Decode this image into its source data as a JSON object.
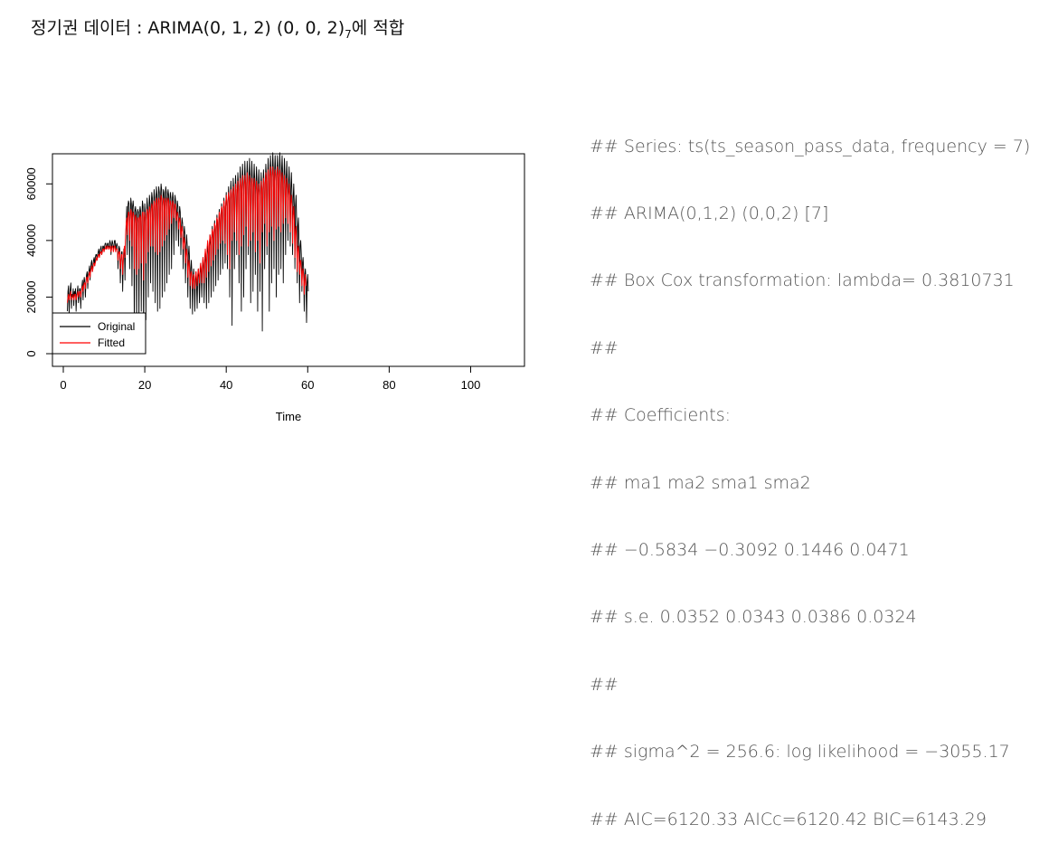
{
  "header": {
    "title_main": "정기권 데이터 : ARIMA(0, 1, 2) (0, 0, 2)",
    "title_sub": "7",
    "title_tail": "에 적합"
  },
  "console": {
    "lines": [
      "## Series: ts(ts_season_pass_data, frequency = 7)",
      "## ARIMA(0,1,2) (0,0,2) [7]",
      "## Box Cox transformation: lambda= 0.3810731",
      "##",
      "## Coefficients:",
      "## ma1 ma2 sma1 sma2",
      "## −0.5834 −0.3092 0.1446 0.0471",
      "## s.e. 0.0352 0.0343 0.0386 0.0324",
      "##",
      "## sigma^2 = 256.6: log likelihood = −3055.17",
      "## AIC=6120.33 AICc=6120.42 BIC=6143.29"
    ]
  },
  "chart_data": {
    "type": "line",
    "xlabel": "Time",
    "ylabel": "",
    "xlim": [
      0,
      105
    ],
    "ylim": [
      0,
      70000
    ],
    "x_ticks": [
      0,
      20,
      40,
      60,
      80,
      100
    ],
    "y_ticks": [
      0,
      20000,
      40000,
      60000
    ],
    "legend_position": "bottom-left",
    "grid": false,
    "x_start": 1,
    "x_step": 0.142857,
    "series": [
      {
        "name": "Original",
        "color": "#000000",
        "values": [
          15000,
          22000,
          24000,
          14000,
          21000,
          23000,
          25000,
          16000,
          21000,
          20000,
          23000,
          17000,
          22000,
          21000,
          23000,
          15000,
          21000,
          22000,
          24000,
          18000,
          20000,
          23000,
          23000,
          16000,
          22000,
          24000,
          26000,
          19000,
          25000,
          27000,
          25000,
          20000,
          26000,
          28000,
          29000,
          23000,
          28000,
          29000,
          31000,
          26000,
          30000,
          32000,
          33000,
          29000,
          31000,
          33000,
          34000,
          31000,
          34000,
          35000,
          35000,
          33000,
          35000,
          36000,
          37000,
          34000,
          36000,
          37000,
          38000,
          35000,
          36000,
          38000,
          38000,
          36000,
          38000,
          39000,
          39000,
          37000,
          38000,
          39000,
          39000,
          37000,
          38000,
          40000,
          39000,
          35000,
          38000,
          40000,
          39000,
          37000,
          38000,
          40000,
          40000,
          36000,
          38000,
          39000,
          38000,
          30000,
          36000,
          38000,
          37000,
          25000,
          33000,
          36000,
          36000,
          22000,
          32000,
          37000,
          37000,
          26000,
          40000,
          45000,
          52000,
          35000,
          52000,
          54000,
          53000,
          30000,
          48000,
          55000,
          53000,
          24000,
          52000,
          54000,
          51000,
          10000,
          50000,
          52000,
          50000,
          8000,
          49000,
          51000,
          50000,
          10000,
          50000,
          52000,
          50000,
          15000,
          48000,
          54000,
          52000,
          3000,
          47000,
          53000,
          49000,
          12000,
          49000,
          55000,
          51000,
          20000,
          50000,
          56000,
          53000,
          25000,
          52000,
          57000,
          55000,
          22000,
          51000,
          58000,
          55000,
          18000,
          52000,
          59000,
          56000,
          15000,
          54000,
          59000,
          57000,
          16000,
          55000,
          60000,
          58000,
          20000,
          53000,
          58000,
          57000,
          22000,
          54000,
          59000,
          57000,
          25000,
          55000,
          58000,
          56000,
          28000,
          54000,
          57000,
          55000,
          30000,
          53000,
          57000,
          55000,
          35000,
          52000,
          56000,
          54000,
          40000,
          50000,
          54000,
          52000,
          38000,
          48000,
          52000,
          50000,
          35000,
          45000,
          48000,
          46000,
          30000,
          42000,
          45000,
          42000,
          25000,
          38000,
          42000,
          38000,
          20000,
          35000,
          38000,
          33000,
          16000,
          30000,
          33000,
          28000,
          14000,
          27000,
          30000,
          25000,
          15000,
          26000,
          29000,
          24000,
          16000,
          27000,
          30000,
          26000,
          18000,
          28000,
          32000,
          28000,
          20000,
          30000,
          34000,
          30000,
          18000,
          32000,
          36000,
          32000,
          16000,
          35000,
          39000,
          35000,
          18000,
          38000,
          42000,
          38000,
          20000,
          40000,
          45000,
          41000,
          22000,
          42000,
          47000,
          43000,
          24000,
          44000,
          49000,
          45000,
          26000,
          46000,
          51000,
          47000,
          28000,
          48000,
          53000,
          49000,
          30000,
          50000,
          55000,
          51000,
          32000,
          52000,
          57000,
          52000,
          30000,
          53000,
          59000,
          54000,
          20000,
          55000,
          61000,
          56000,
          10000,
          56000,
          62000,
          57000,
          30000,
          57000,
          63000,
          58000,
          35000,
          58000,
          64000,
          59000,
          25000,
          58000,
          66000,
          60000,
          15000,
          59000,
          67000,
          61000,
          20000,
          60000,
          68000,
          61000,
          30000,
          60000,
          68000,
          62000,
          35000,
          61000,
          69000,
          62000,
          18000,
          61000,
          68000,
          61000,
          22000,
          60000,
          67000,
          61000,
          28000,
          60000,
          66000,
          60000,
          15000,
          58000,
          65000,
          59000,
          22000,
          57000,
          64000,
          58000,
          8000,
          58000,
          65000,
          60000,
          30000,
          60000,
          67000,
          62000,
          35000,
          62000,
          69000,
          63000,
          15000,
          63000,
          70000,
          64000,
          25000,
          64000,
          71000,
          65000,
          30000,
          64000,
          70000,
          64000,
          20000,
          63000,
          70000,
          64000,
          28000,
          64000,
          71000,
          65000,
          30000,
          64000,
          70000,
          63000,
          25000,
          62000,
          69000,
          62000,
          35000,
          61000,
          68000,
          61000,
          40000,
          60000,
          66000,
          59000,
          38000,
          58000,
          64000,
          56000,
          35000,
          55000,
          60000,
          52000,
          30000,
          52000,
          56000,
          47000,
          25000,
          45000,
          48000,
          40000,
          18000,
          38000,
          40000,
          35000,
          22000,
          32000,
          34000,
          30000,
          15000,
          28000,
          30000,
          26000,
          11000,
          25000,
          28000,
          22000
        ]
      },
      {
        "name": "Fitted",
        "color": "#ff0000",
        "values": [
          18000,
          20000,
          21000,
          19000,
          20000,
          21000,
          22000,
          19000,
          20000,
          20000,
          21000,
          19000,
          20000,
          21000,
          21000,
          19000,
          20000,
          21000,
          22000,
          20000,
          21000,
          22000,
          22000,
          20000,
          22000,
          23000,
          24000,
          22000,
          24000,
          25000,
          25000,
          23000,
          25000,
          27000,
          27000,
          25000,
          27000,
          28000,
          29000,
          27000,
          29000,
          30000,
          31000,
          29000,
          30000,
          32000,
          32000,
          31000,
          32000,
          33000,
          34000,
          33000,
          34000,
          35000,
          35000,
          34000,
          35000,
          36000,
          36000,
          35000,
          36000,
          37000,
          37000,
          36000,
          37000,
          37000,
          38000,
          37000,
          37000,
          38000,
          38000,
          37000,
          37000,
          38000,
          38000,
          36000,
          37000,
          38000,
          38000,
          36000,
          37000,
          38000,
          38000,
          36000,
          37000,
          37000,
          37000,
          33000,
          35000,
          36000,
          36000,
          30000,
          33000,
          35000,
          35000,
          28000,
          33000,
          36000,
          38000,
          34000,
          42000,
          46000,
          48000,
          42000,
          48000,
          50000,
          50000,
          40000,
          47000,
          51000,
          50000,
          38000,
          48000,
          50000,
          49000,
          30000,
          46000,
          49000,
          48000,
          28000,
          46000,
          48000,
          48000,
          30000,
          47000,
          49000,
          48000,
          32000,
          47000,
          50000,
          50000,
          26000,
          46000,
          50000,
          48000,
          32000,
          47000,
          51000,
          50000,
          36000,
          49000,
          52000,
          51000,
          38000,
          50000,
          53000,
          52000,
          38000,
          50000,
          54000,
          53000,
          36000,
          51000,
          55000,
          54000,
          35000,
          52000,
          55000,
          54000,
          36000,
          53000,
          56000,
          55000,
          38000,
          52000,
          55000,
          54000,
          40000,
          52000,
          55000,
          54000,
          42000,
          53000,
          55000,
          54000,
          44000,
          52000,
          54000,
          53000,
          46000,
          51000,
          54000,
          53000,
          48000,
          50000,
          53000,
          52000,
          47000,
          48000,
          50000,
          49000,
          44000,
          46000,
          48000,
          47000,
          41000,
          43000,
          45000,
          43000,
          37000,
          39000,
          41000,
          39000,
          32000,
          35000,
          37000,
          34000,
          27000,
          31000,
          33000,
          30000,
          24000,
          28000,
          29000,
          27000,
          23000,
          26000,
          28000,
          26000,
          23000,
          27000,
          29000,
          27000,
          24000,
          28000,
          30000,
          28000,
          25000,
          30000,
          32000,
          30000,
          25000,
          31000,
          34000,
          32000,
          25000,
          34000,
          37000,
          35000,
          27000,
          37000,
          40000,
          38000,
          29000,
          39000,
          42000,
          41000,
          31000,
          41000,
          44000,
          43000,
          33000,
          43000,
          46000,
          45000,
          35000,
          45000,
          48000,
          47000,
          37000,
          47000,
          50000,
          49000,
          39000,
          49000,
          52000,
          51000,
          40000,
          51000,
          54000,
          52000,
          39000,
          52000,
          56000,
          54000,
          35000,
          54000,
          57000,
          55000,
          30000,
          54000,
          58000,
          56000,
          40000,
          55000,
          59000,
          57000,
          43000,
          56000,
          60000,
          58000,
          40000,
          56000,
          61000,
          58000,
          35000,
          57000,
          62000,
          59000,
          38000,
          58000,
          63000,
          60000,
          42000,
          58000,
          63000,
          60000,
          45000,
          59000,
          64000,
          61000,
          38000,
          59000,
          63000,
          60000,
          40000,
          58000,
          62000,
          60000,
          43000,
          58000,
          62000,
          59000,
          36000,
          56000,
          61000,
          58000,
          40000,
          56000,
          60000,
          57000,
          32000,
          56000,
          61000,
          58000,
          43000,
          58000,
          62000,
          60000,
          46000,
          60000,
          64000,
          61000,
          38000,
          61000,
          65000,
          62000,
          43000,
          62000,
          66000,
          63000,
          45000,
          62000,
          66000,
          63000,
          40000,
          61000,
          65000,
          63000,
          44000,
          62000,
          66000,
          63000,
          45000,
          62000,
          65000,
          62000,
          43000,
          60000,
          64000,
          61000,
          46000,
          59000,
          63000,
          60000,
          48000,
          58000,
          62000,
          58000,
          46000,
          56000,
          60000,
          56000,
          43000,
          53000,
          56000,
          52000,
          39000,
          49000,
          52000,
          47000,
          34000,
          43000,
          45000,
          40000,
          29000,
          37000,
          38000,
          35000,
          28000,
          32000,
          33000,
          30000,
          24000,
          29000,
          30000,
          27000,
          21000,
          26000,
          28000,
          24000
        ]
      }
    ]
  }
}
